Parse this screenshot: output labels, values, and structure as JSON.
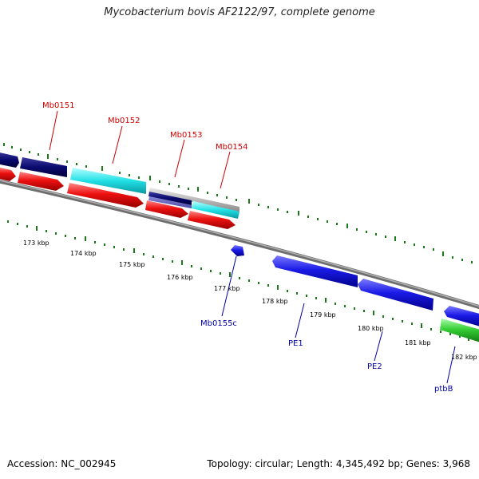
{
  "title": "Mycobacterium bovis AF2122/97, complete genome",
  "footer": {
    "accession": "Accession: NC_002945",
    "stats": "Topology: circular; Length: 4,345,492 bp; Genes: 3,968"
  },
  "scale_labels": [
    "173 kbp",
    "174 kbp",
    "175 kbp",
    "176 kbp",
    "177 kbp",
    "178 kbp",
    "179 kbp",
    "180 kbp",
    "181 kbp",
    "182 kbp"
  ],
  "gene_labels_forward": [
    "Mb0151",
    "Mb0152",
    "Mb0153",
    "Mb0154"
  ],
  "gene_labels_reverse": [
    "Mb0155c",
    "PE1",
    "PE2",
    "ptbB"
  ],
  "colors": {
    "backbone": "#808080",
    "tick": "#1a7a1a",
    "navy_gene": "#0a0a6e",
    "cyan_gene": "#22e0e6",
    "red_gene": "#ee1111",
    "gray_gene": "#b8b8b8",
    "blue_gene": "#1a1ae6",
    "green_gene": "#33cc33",
    "forward_label": "#cc0000",
    "reverse_label": "#0000aa"
  }
}
